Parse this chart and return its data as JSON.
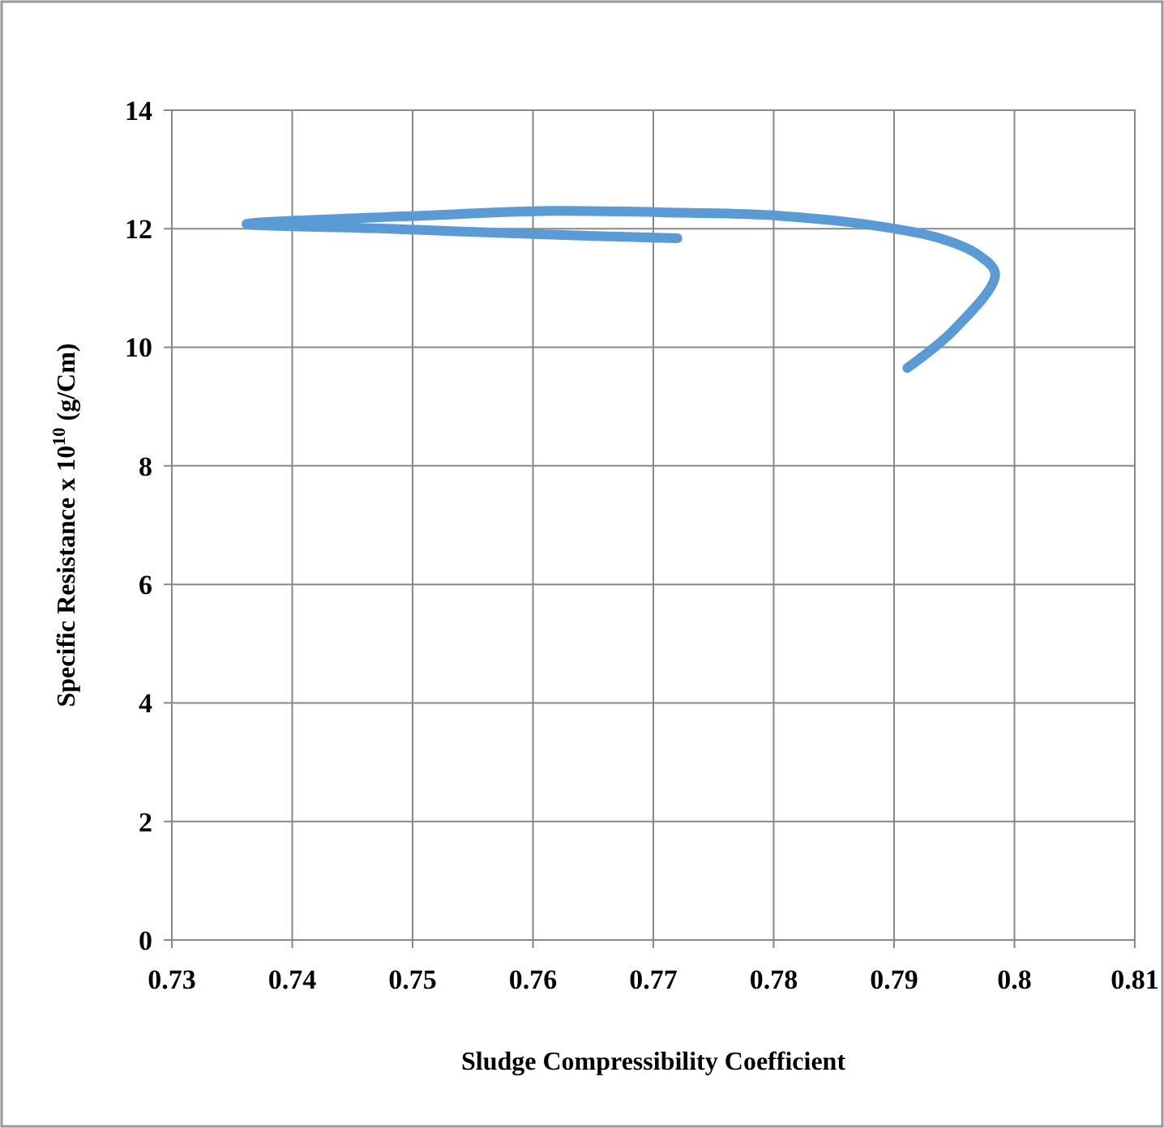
{
  "chart_data": {
    "type": "line",
    "xlabel": "Sludge Compressibility Coefficient",
    "ylabel": "Specific Resistance  x 10$^{10}$ (g/Cm)",
    "xlim": [
      0.73,
      0.81
    ],
    "xticks": [
      0.73,
      0.74,
      0.75,
      0.76,
      0.77,
      0.78,
      0.79,
      0.8,
      0.81
    ],
    "ylim": [
      0,
      14
    ],
    "yticks": [
      0,
      2,
      4,
      6,
      8,
      10,
      12,
      14
    ],
    "grid": true,
    "marker": "none",
    "line_style": "solid",
    "series": [
      {
        "color": "#5b9bd5",
        "x": [
          0.7911,
          0.795,
          0.7984,
          0.797,
          0.7938,
          0.7885,
          0.7804,
          0.7723,
          0.7615,
          0.7507,
          0.7362,
          0.748,
          0.7615,
          0.772
        ],
        "values": [
          9.65,
          10.3,
          11.23,
          11.56,
          11.84,
          12.05,
          12.22,
          12.27,
          12.3,
          12.22,
          12.08,
          12.0,
          11.9,
          11.84
        ]
      }
    ]
  }
}
